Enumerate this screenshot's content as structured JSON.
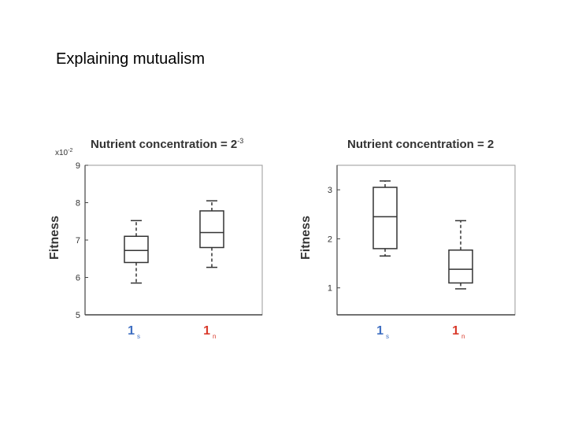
{
  "slide": {
    "title": "Explaining mutualism"
  },
  "colors": {
    "axis": "#444444",
    "box": "#333333",
    "whisker": "#666666",
    "series_s": "#3f6fc2",
    "series_n": "#d93a2b"
  },
  "chart_data": [
    {
      "type": "box",
      "title_main": "Nutrient concentration = 2",
      "title_exp": "-3",
      "ylabel": "Fitness",
      "yscale_label_base": "x10",
      "yscale_label_exp": "-2",
      "ylim": [
        5,
        9
      ],
      "yticks": [
        "9",
        "8",
        "7",
        "6",
        "5"
      ],
      "categories": [
        {
          "main": "1",
          "sub": "s"
        },
        {
          "main": "1",
          "sub": "n"
        }
      ],
      "boxes": [
        {
          "whisker_low": 5.85,
          "q1": 6.4,
          "median": 6.72,
          "q3": 7.1,
          "whisker_high": 7.52
        },
        {
          "whisker_low": 6.27,
          "q1": 6.8,
          "median": 7.2,
          "q3": 7.78,
          "whisker_high": 8.05
        }
      ]
    },
    {
      "type": "box",
      "title_main": "Nutrient concentration = 2",
      "title_exp": "",
      "ylabel": "Fitness",
      "ylim": [
        0.45,
        3.5
      ],
      "yticks": [
        "3",
        "2",
        "1"
      ],
      "categories": [
        {
          "main": "1",
          "sub": "s"
        },
        {
          "main": "1",
          "sub": "n"
        }
      ],
      "boxes": [
        {
          "whisker_low": 1.65,
          "q1": 1.8,
          "median": 2.45,
          "q3": 3.05,
          "whisker_high": 3.18
        },
        {
          "whisker_low": 0.98,
          "q1": 1.1,
          "median": 1.38,
          "q3": 1.77,
          "whisker_high": 2.37
        }
      ]
    }
  ]
}
